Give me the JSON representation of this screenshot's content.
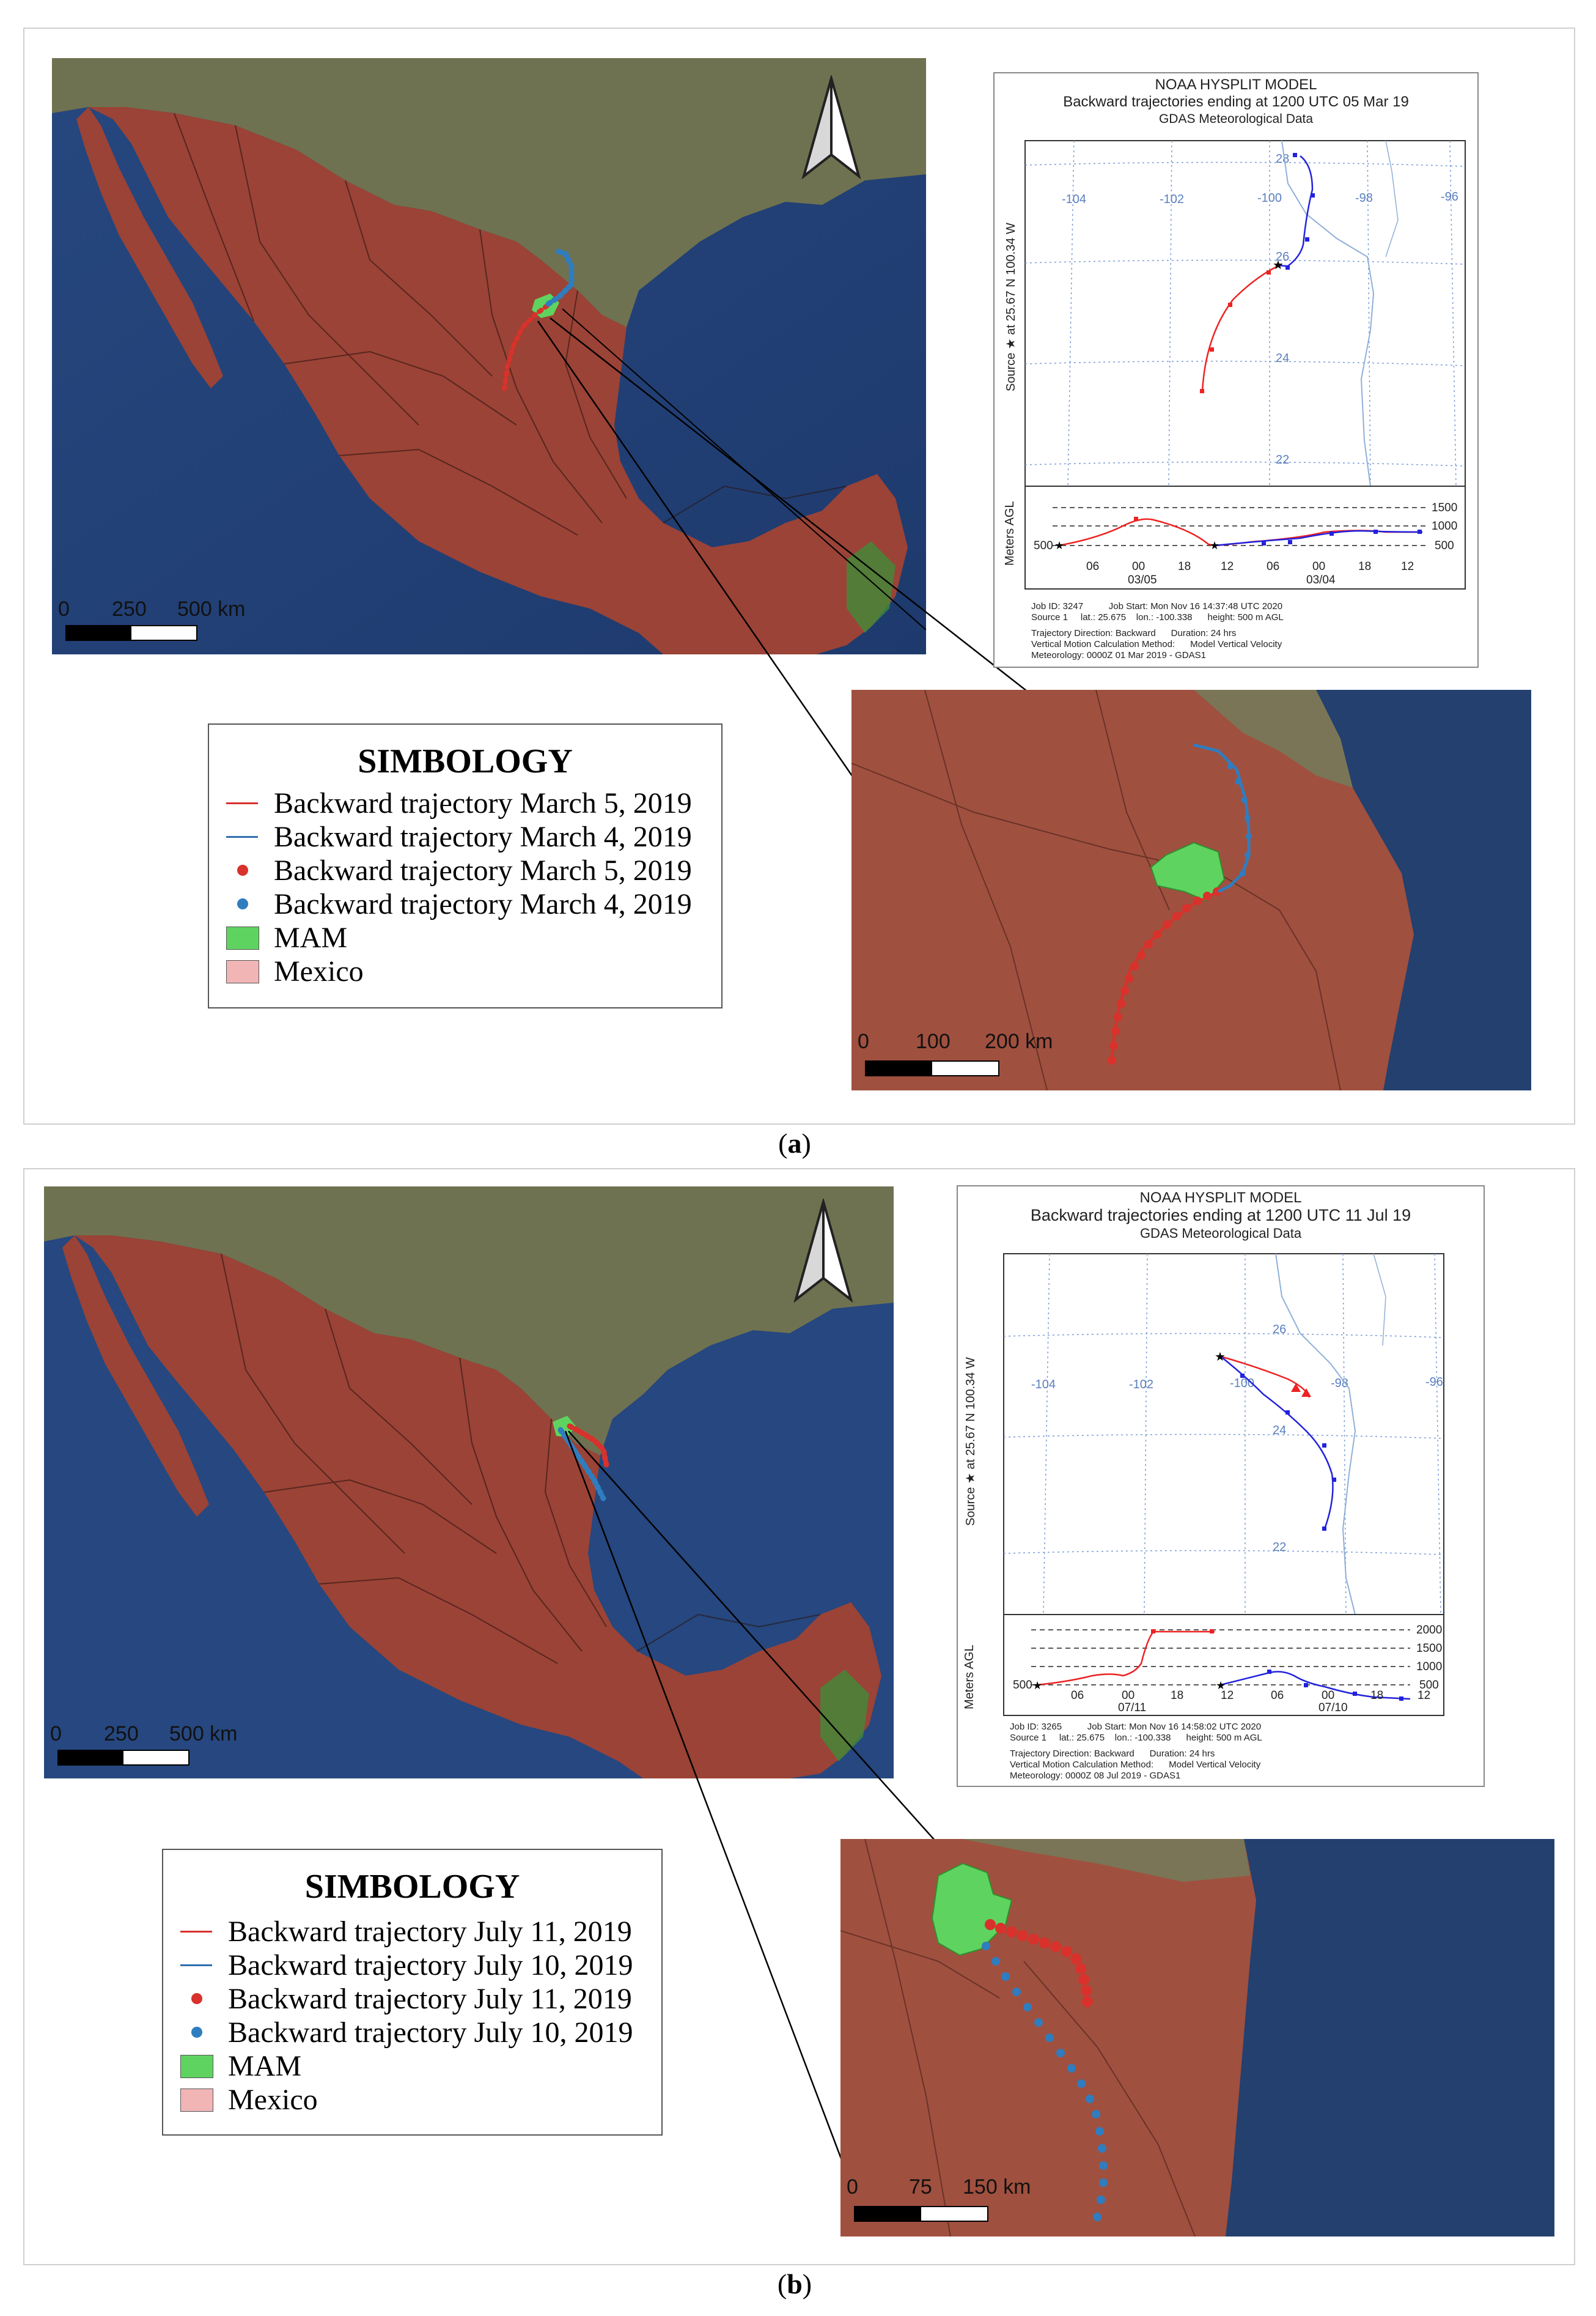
{
  "panels": [
    {
      "caption": "a",
      "legend": {
        "title": "SIMBOLOGY",
        "items": [
          {
            "label": "Backward trajectory March 5, 2019",
            "kind": "line",
            "color": "#d9312b"
          },
          {
            "label": "Backward trajectory March 4, 2019",
            "kind": "line",
            "color": "#2f6fb0"
          },
          {
            "label": "Backward trajectory March 5, 2019",
            "kind": "dot",
            "color": "#d9312b"
          },
          {
            "label": "Backward trajectory March 4, 2019",
            "kind": "dot",
            "color": "#2f7dbf"
          },
          {
            "label": "MAM",
            "kind": "box",
            "color": "#5fd35f"
          },
          {
            "label": "Mexico",
            "kind": "box",
            "color": "#f1b5b5"
          }
        ]
      },
      "main_scale": [
        "0",
        "250",
        "500 km"
      ],
      "zoom_scale": [
        "0",
        "100",
        "200 km"
      ],
      "hysplit": {
        "title_lines": [
          "NOAA HYSPLIT MODEL",
          "Backward trajectories ending at 1200 UTC 05 Mar 19",
          "GDAS Meteorological Data"
        ],
        "source_label": "Source ★ at  25.67 N 100.34 W",
        "lon_labels": [
          "-104",
          "-102",
          "-100",
          "-98",
          "-96"
        ],
        "lat_labels": [
          "28",
          "26",
          "24",
          "22"
        ],
        "height_axis_label": "Meters AGL",
        "height_levels": [
          "1500",
          "1000",
          "500"
        ],
        "height_left_label": "500",
        "time_ticks": [
          "06",
          "00",
          "18",
          "12",
          "06",
          "00",
          "18",
          "12"
        ],
        "date_labels": [
          "03/05",
          "03/04"
        ],
        "footer": [
          "Job ID: 3247          Job Start: Mon Nov 16 14:37:48 UTC 2020",
          "Source 1     lat.: 25.675    lon.: -100.338      height: 500 m AGL",
          "Trajectory Direction: Backward      Duration: 24 hrs",
          "Vertical Motion Calculation Method:      Model Vertical Velocity",
          "Meteorology: 0000Z 01 Mar 2019 - GDAS1"
        ]
      }
    },
    {
      "caption": "b",
      "legend": {
        "title": "SIMBOLOGY",
        "items": [
          {
            "label": "Backward trajectory July 11, 2019",
            "kind": "line",
            "color": "#d9312b"
          },
          {
            "label": "Backward trajectory July 10, 2019",
            "kind": "line",
            "color": "#2f6fb0"
          },
          {
            "label": "Backward trajectory July 11, 2019",
            "kind": "dot",
            "color": "#d9312b"
          },
          {
            "label": "Backward trajectory July 10, 2019",
            "kind": "dot",
            "color": "#2f7dbf"
          },
          {
            "label": "MAM",
            "kind": "box",
            "color": "#5fd35f"
          },
          {
            "label": "Mexico",
            "kind": "box",
            "color": "#f1b5b5"
          }
        ]
      },
      "main_scale": [
        "0",
        "250",
        "500 km"
      ],
      "zoom_scale": [
        "0",
        "75",
        "150 km"
      ],
      "hysplit": {
        "title_lines": [
          "NOAA HYSPLIT MODEL",
          "Backward trajectories ending at 1200 UTC 11 Jul 19",
          "GDAS Meteorological Data"
        ],
        "source_label": "Source ★ at  25.67 N 100.34 W",
        "lon_labels": [
          "-104",
          "-102",
          "-100",
          "-98",
          "-96"
        ],
        "lat_labels": [
          "26",
          "24",
          "22"
        ],
        "height_axis_label": "Meters AGL",
        "height_levels": [
          "2000",
          "1500",
          "1000",
          "500"
        ],
        "height_left_label": "500",
        "time_ticks": [
          "06",
          "00",
          "18",
          "12",
          "06",
          "00",
          "18",
          "12"
        ],
        "date_labels": [
          "07/11",
          "07/10"
        ],
        "footer": [
          "Job ID: 3265          Job Start: Mon Nov 16 14:58:02 UTC 2020",
          "Source 1     lat.: 25.675    lon.: -100.338      height: 500 m AGL",
          "Trajectory Direction: Backward      Duration: 24 hrs",
          "Vertical Motion Calculation Method:      Model Vertical Velocity",
          "Meteorology: 0000Z 08 Jul 2019 - GDAS1"
        ]
      }
    }
  ],
  "colors": {
    "ocean": "#2d4f8e",
    "mexico_land": "#9b4336",
    "usa_land": "#7a7a5c",
    "mam": "#5fd35f",
    "red_traj": "#d9312b",
    "blue_traj": "#2f7dbf"
  }
}
